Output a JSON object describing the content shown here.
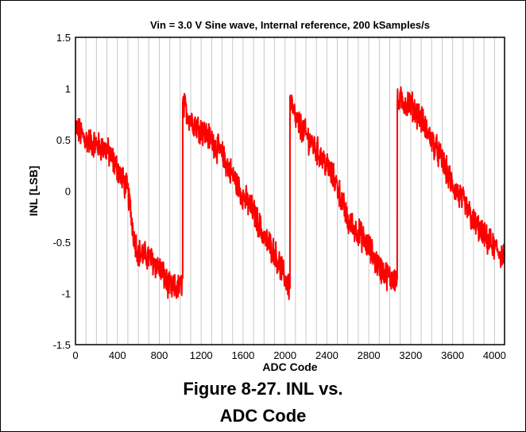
{
  "chart_data": {
    "type": "line",
    "title": "Vin = 3.0 V Sine wave, Internal reference, 200 kSamples/s",
    "xlabel": "ADC Code",
    "ylabel": "INL [LSB]",
    "xlim": [
      0,
      4096
    ],
    "ylim": [
      -1.5,
      1.5
    ],
    "x_ticks": [
      "0",
      "400",
      "800",
      "1200",
      "1600",
      "2000",
      "2400",
      "2800",
      "3200",
      "3600",
      "4000"
    ],
    "y_ticks": [
      "1.5",
      "1",
      "0.5",
      "0",
      "-0.5",
      "-1",
      "-1.5"
    ],
    "grid": "vertical",
    "series": [
      {
        "color": "#ff0000",
        "x": [
          0,
          100,
          200,
          300,
          400,
          500,
          560,
          600,
          700,
          800,
          900,
          1000,
          1023,
          1024,
          1100,
          1200,
          1300,
          1400,
          1500,
          1600,
          1700,
          1800,
          1900,
          2000,
          2047,
          2048,
          2100,
          2200,
          2300,
          2400,
          2500,
          2600,
          2700,
          2800,
          2900,
          3000,
          3071,
          3072,
          3100,
          3200,
          3300,
          3400,
          3500,
          3600,
          3700,
          3800,
          3900,
          4000,
          4095
        ],
        "y": [
          0.62,
          0.5,
          0.45,
          0.4,
          0.22,
          0.0,
          -0.45,
          -0.6,
          -0.65,
          -0.75,
          -0.95,
          -0.95,
          -0.85,
          0.85,
          0.7,
          0.6,
          0.5,
          0.35,
          0.15,
          -0.05,
          -0.2,
          -0.45,
          -0.6,
          -0.85,
          -0.95,
          0.9,
          0.7,
          0.55,
          0.4,
          0.25,
          0.05,
          -0.3,
          -0.4,
          -0.55,
          -0.75,
          -0.85,
          -0.85,
          0.85,
          0.88,
          0.85,
          0.7,
          0.5,
          0.3,
          0.05,
          -0.1,
          -0.3,
          -0.45,
          -0.55,
          -0.65
        ]
      }
    ]
  },
  "caption": {
    "line1": "Figure 8-27. INL vs.",
    "line2": "ADC Code"
  }
}
